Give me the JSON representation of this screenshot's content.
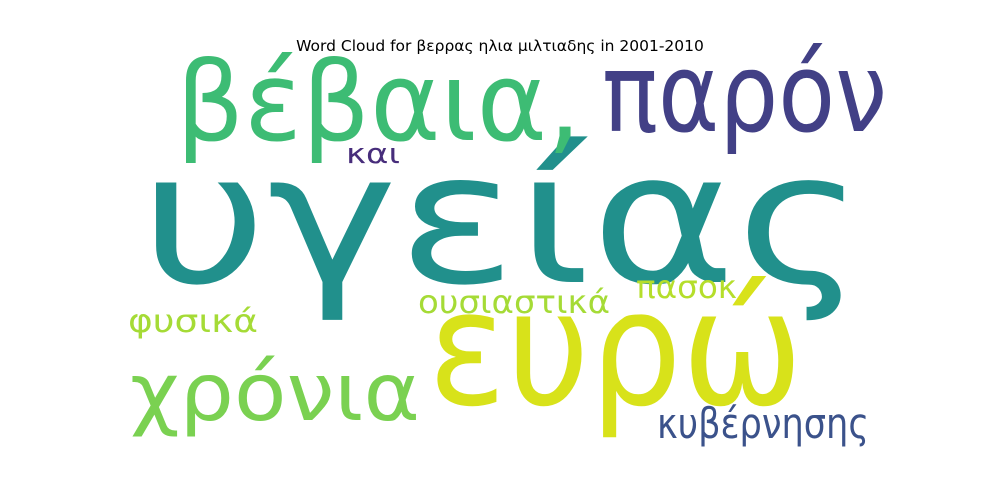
{
  "chart_data": {
    "type": "wordcloud",
    "title": "Word Cloud for βερρας ηλια μιλτιαδης in 2001-2010",
    "words": [
      {
        "text": "υγείας",
        "color": "#21908c"
      },
      {
        "text": "ευρώ",
        "color": "#d8e21a"
      },
      {
        "text": "βέβαια,",
        "color": "#3dbc74"
      },
      {
        "text": "παρόν",
        "color": "#424086"
      },
      {
        "text": "χρόνια",
        "color": "#7ad151"
      },
      {
        "text": "κυβέρνησης",
        "color": "#3b528b"
      },
      {
        "text": "ουσιαστικά",
        "color": "#a5db36"
      },
      {
        "text": "φυσικά",
        "color": "#a5db36"
      },
      {
        "text": "πασοκ",
        "color": "#b5de2b"
      },
      {
        "text": "και",
        "color": "#472d7b"
      }
    ]
  }
}
